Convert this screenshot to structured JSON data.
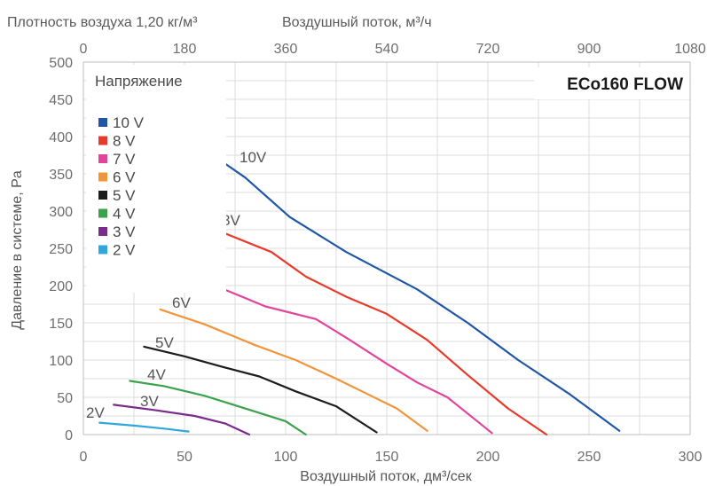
{
  "header": {
    "density_label": "Плотность воздуха 1,20 кг/м³",
    "top_axis_label": "Воздушный поток, м³/ч"
  },
  "colors": {
    "10V": "#1f56a6",
    "8V": "#e63a2c",
    "7V": "#e2449a",
    "6V": "#f0953a",
    "5V": "#1c1c1c",
    "4V": "#3aa24a",
    "3V": "#7b2b8c",
    "2V": "#2fa6dc"
  },
  "chart_data": {
    "type": "line",
    "model": "ECo160 FLOW",
    "xlabel": "Воздушный поток, дм³/сек",
    "ylabel": "Давление в системе, Pa",
    "xlim": [
      0,
      300
    ],
    "ylim": [
      0,
      500
    ],
    "x_ticks": [
      "0",
      "50",
      "100",
      "150",
      "200",
      "250",
      "300"
    ],
    "y_ticks": [
      "0",
      "50",
      "100",
      "150",
      "200",
      "250",
      "300",
      "350",
      "400",
      "450",
      "500"
    ],
    "top_axis_ticks": [
      "0",
      "180",
      "360",
      "540",
      "720",
      "900",
      "1080"
    ],
    "legend_title": "Напряжение",
    "legend_position": "top-left",
    "grid": true,
    "series": [
      {
        "name": "10 V",
        "label": "10 V",
        "color_key": "10V",
        "points": [
          [
            56,
            390
          ],
          [
            80,
            345
          ],
          [
            102,
            292
          ],
          [
            130,
            245
          ],
          [
            165,
            195
          ],
          [
            190,
            150
          ],
          [
            215,
            100
          ],
          [
            240,
            55
          ],
          [
            265,
            5
          ]
        ]
      },
      {
        "name": "8 V",
        "label": "8 V",
        "color_key": "8V",
        "points": [
          [
            50,
            300
          ],
          [
            70,
            270
          ],
          [
            93,
            245
          ],
          [
            110,
            212
          ],
          [
            130,
            185
          ],
          [
            150,
            162
          ],
          [
            170,
            127
          ],
          [
            190,
            80
          ],
          [
            210,
            35
          ],
          [
            229,
            0
          ]
        ]
      },
      {
        "name": "7 V",
        "label": "7 V",
        "color_key": "7V",
        "points": [
          [
            45,
            235
          ],
          [
            65,
            200
          ],
          [
            90,
            172
          ],
          [
            115,
            155
          ],
          [
            130,
            130
          ],
          [
            150,
            95
          ],
          [
            165,
            70
          ],
          [
            180,
            50
          ],
          [
            202,
            2
          ]
        ]
      },
      {
        "name": "6 V",
        "label": "6 V",
        "color_key": "6V",
        "points": [
          [
            38,
            168
          ],
          [
            60,
            148
          ],
          [
            85,
            120
          ],
          [
            105,
            100
          ],
          [
            125,
            75
          ],
          [
            140,
            55
          ],
          [
            155,
            35
          ],
          [
            170,
            5
          ]
        ]
      },
      {
        "name": "5 V",
        "label": "5 V",
        "color_key": "5V",
        "points": [
          [
            30,
            118
          ],
          [
            50,
            105
          ],
          [
            70,
            90
          ],
          [
            87,
            78
          ],
          [
            105,
            58
          ],
          [
            125,
            38
          ],
          [
            145,
            3
          ]
        ]
      },
      {
        "name": "4 V",
        "label": "4 V",
        "color_key": "4V",
        "points": [
          [
            23,
            72
          ],
          [
            40,
            65
          ],
          [
            60,
            52
          ],
          [
            80,
            35
          ],
          [
            100,
            18
          ],
          [
            110,
            0
          ]
        ]
      },
      {
        "name": "3 V",
        "label": "3 V",
        "color_key": "3V",
        "points": [
          [
            15,
            40
          ],
          [
            35,
            33
          ],
          [
            55,
            25
          ],
          [
            70,
            15
          ],
          [
            82,
            0
          ]
        ]
      },
      {
        "name": "2 V",
        "label": "2 V",
        "color_key": "2V",
        "points": [
          [
            8,
            16
          ],
          [
            25,
            12
          ],
          [
            40,
            8
          ],
          [
            52,
            4
          ]
        ]
      }
    ]
  }
}
